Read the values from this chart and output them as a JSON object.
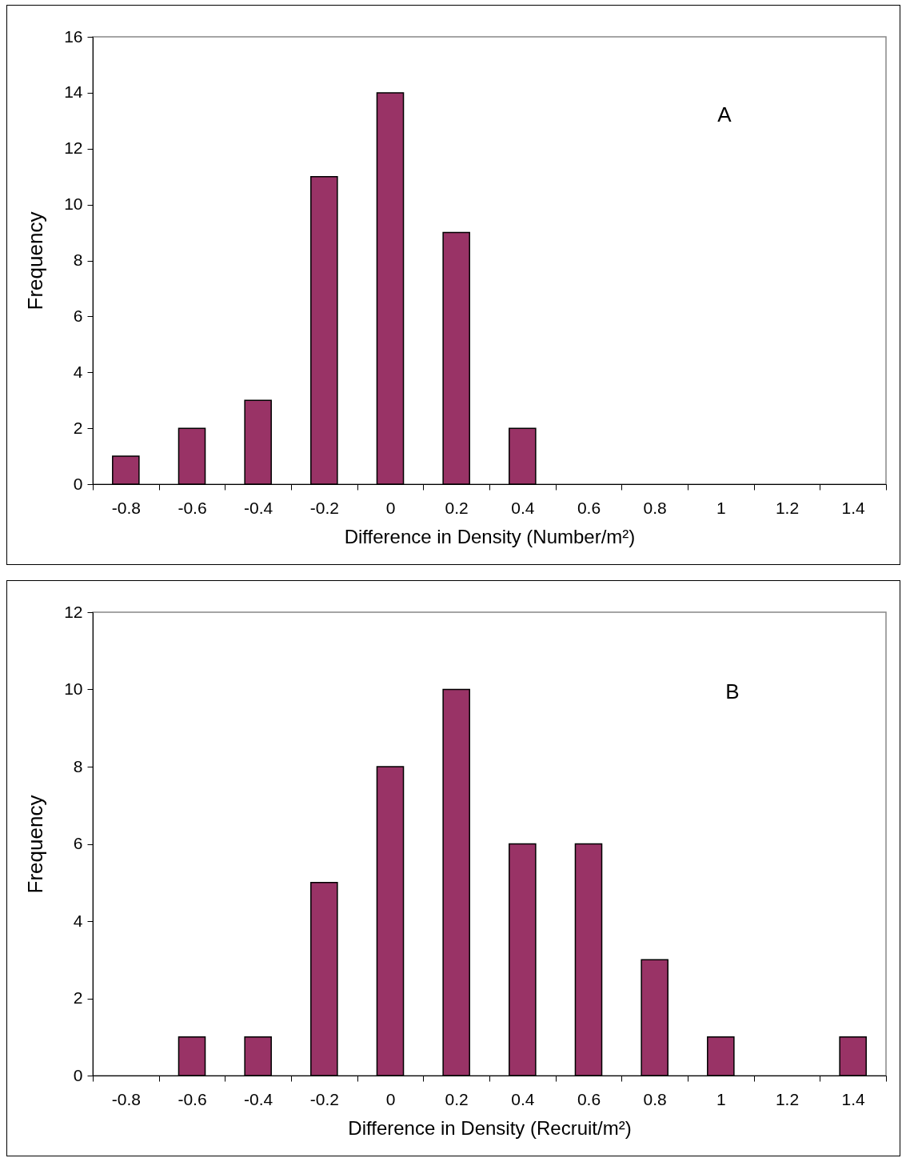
{
  "chart_data": [
    {
      "type": "bar",
      "categories": [
        "-0.8",
        "-0.6",
        "-0.4",
        "-0.2",
        "0",
        "0.2",
        "0.4",
        "0.6",
        "0.8",
        "1",
        "1.2",
        "1.4"
      ],
      "values": [
        1,
        2,
        3,
        11,
        14,
        9,
        2,
        0,
        0,
        0,
        0,
        0
      ],
      "color": "#993366",
      "xlabel": "Difference in Density (Number/m²)",
      "ylabel": "Frequency",
      "ylim": [
        0,
        16
      ],
      "yticks": [
        0,
        2,
        4,
        6,
        8,
        10,
        12,
        14,
        16
      ],
      "annotations": [
        "A"
      ]
    },
    {
      "type": "bar",
      "categories": [
        "-0.8",
        "-0.6",
        "-0.4",
        "-0.2",
        "0",
        "0.2",
        "0.4",
        "0.6",
        "0.8",
        "1",
        "1.2",
        "1.4"
      ],
      "values": [
        0,
        1,
        1,
        5,
        8,
        10,
        6,
        6,
        3,
        1,
        0,
        1
      ],
      "color": "#993366",
      "xlabel": "Difference in Density (Recruit/m²)",
      "ylabel": "Frequency",
      "ylim": [
        0,
        12
      ],
      "yticks": [
        0,
        2,
        4,
        6,
        8,
        10,
        12
      ],
      "annotations": [
        "B"
      ]
    }
  ]
}
